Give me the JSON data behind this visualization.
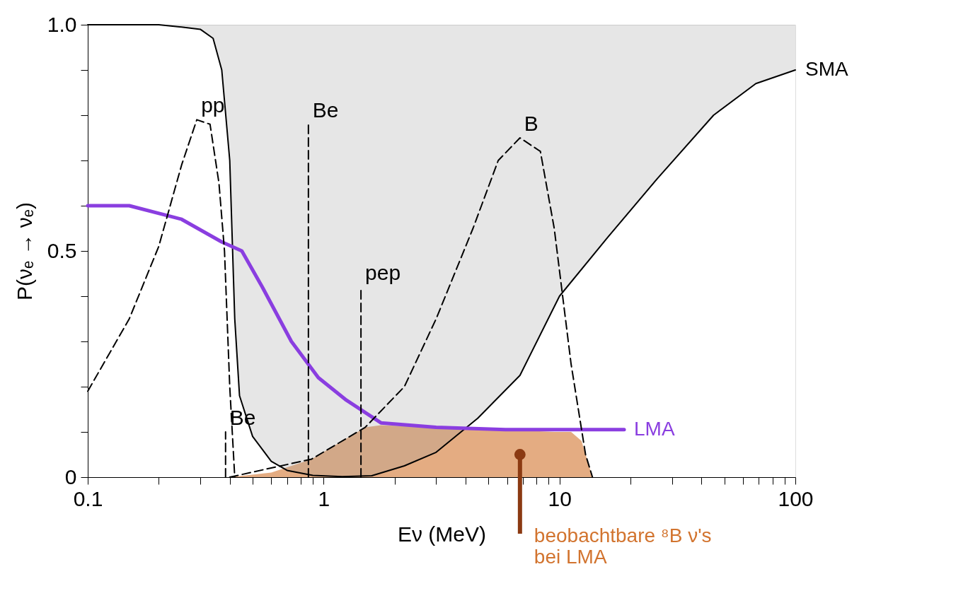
{
  "chart_data": {
    "type": "line",
    "xlabel": "Eν (MeV)",
    "ylabel": "P(νₑ → νₑ)",
    "log": "x",
    "grid": false,
    "xlim": [
      0.1,
      100
    ],
    "ylim": [
      0,
      1
    ],
    "xticks": [
      0.1,
      {
        "value": 0.2,
        "label": null
      },
      {
        "value": 0.3,
        "label": null
      },
      {
        "value": 0.4,
        "label": null
      },
      {
        "value": 0.5,
        "label": null
      },
      {
        "value": 0.6,
        "label": null
      },
      {
        "value": 0.7,
        "label": null
      },
      {
        "value": 0.8,
        "label": null
      },
      {
        "value": 0.9,
        "label": null
      },
      1,
      {
        "value": 2,
        "label": null
      },
      {
        "value": 3,
        "label": null
      },
      {
        "value": 4,
        "label": null
      },
      {
        "value": 5,
        "label": null
      },
      {
        "value": 6,
        "label": null
      },
      {
        "value": 7,
        "label": null
      },
      {
        "value": 8,
        "label": null
      },
      {
        "value": 9,
        "label": null
      },
      10,
      {
        "value": 20,
        "label": null
      },
      {
        "value": 30,
        "label": null
      },
      {
        "value": 40,
        "label": null
      },
      {
        "value": 50,
        "label": null
      },
      {
        "value": 60,
        "label": null
      },
      {
        "value": 70,
        "label": null
      },
      {
        "value": 80,
        "label": null
      },
      {
        "value": 90,
        "label": null
      },
      100
    ],
    "yticks": [
      0,
      {
        "value": 0.1,
        "label": null
      },
      {
        "value": 0.2,
        "label": null
      },
      {
        "value": 0.3,
        "label": null
      },
      {
        "value": 0.4,
        "label": null
      },
      0.5,
      {
        "value": 0.6,
        "label": null
      },
      {
        "value": 0.7,
        "label": null
      },
      {
        "value": 0.8,
        "label": null
      },
      {
        "value": 0.9,
        "label": null
      },
      {
        "value": 1,
        "label": "1.0"
      }
    ],
    "series": [
      {
        "type": "area",
        "color": "#d2742f",
        "x": [
          0.4,
          0.6,
          0.89,
          1.2,
          1.5,
          1.75,
          3,
          6,
          9.5,
          11.2,
          12.4,
          13.8
        ],
        "values": [
          0,
          0.01,
          0.04,
          0.08,
          0.11,
          0.115,
          0.11,
          0.105,
          0.1,
          0.1,
          0.08,
          0
        ]
      },
      {
        "name": "SMA",
        "color": "#000000",
        "line_style": "solid",
        "x": [
          0.1,
          0.2,
          0.25,
          0.3,
          0.34,
          0.37,
          0.4,
          0.42,
          0.44,
          0.5,
          0.6,
          0.7,
          0.9,
          1.2,
          1.6,
          2.2,
          3,
          4.5,
          6.8,
          10,
          16,
          26,
          45,
          68,
          100
        ],
        "values": [
          1,
          1,
          0.995,
          0.99,
          0.97,
          0.9,
          0.7,
          0.35,
          0.18,
          0.09,
          0.035,
          0.015,
          0.004,
          0.001,
          0.003,
          0.025,
          0.055,
          0.13,
          0.225,
          0.4,
          0.53,
          0.66,
          0.8,
          0.87,
          0.9
        ],
        "lower": [
          1,
          1,
          0.995,
          0.99,
          0.97,
          0.9,
          0.7,
          0.35,
          0.18,
          0.09,
          0.035,
          0.015,
          0.004,
          0.001,
          0.003,
          0.025,
          0.055,
          0.13,
          0.225,
          0.4,
          0.53,
          0.66,
          0.8,
          0.87,
          0.9
        ],
        "upper": [
          1,
          1,
          1,
          1,
          1,
          1,
          1,
          1,
          1,
          1,
          1,
          1,
          1,
          1,
          1,
          1,
          1,
          1,
          1,
          1,
          1,
          1,
          1,
          1,
          1
        ]
      },
      {
        "name": "LMA",
        "color": "#8a3ee0",
        "line_style": "solid",
        "x": [
          0.1,
          0.15,
          0.25,
          0.37,
          0.45,
          0.55,
          0.73,
          0.95,
          1.25,
          1.75,
          3,
          5.9,
          18.8
        ],
        "values": [
          0.6,
          0.6,
          0.57,
          0.52,
          0.5,
          0.42,
          0.3,
          0.22,
          0.17,
          0.12,
          0.11,
          0.105,
          0.105
        ]
      },
      {
        "name": "pp",
        "color": "#000000",
        "line_style": "dashed",
        "x": [
          0.1,
          0.15,
          0.2,
          0.25,
          0.29,
          0.33,
          0.36,
          0.38,
          0.4,
          0.42
        ],
        "values": [
          0.19,
          0.35,
          0.51,
          0.69,
          0.79,
          0.78,
          0.65,
          0.5,
          0.2,
          0
        ]
      },
      {
        "name": "Be",
        "color": "#000000",
        "line_style": "dashed",
        "x": [
          0.384,
          0.384
        ],
        "values": [
          0,
          0.1
        ]
      },
      {
        "name": "Be",
        "color": "#000000",
        "line_style": "dashed",
        "x": [
          0.862,
          0.862
        ],
        "values": [
          0,
          0.78
        ]
      },
      {
        "name": "pep",
        "color": "#000000",
        "line_style": "dashed",
        "x": [
          1.44,
          1.44
        ],
        "values": [
          0,
          0.42
        ]
      },
      {
        "name": "B",
        "color": "#000000",
        "line_style": "dashed",
        "x": [
          0.4,
          0.89,
          1.5,
          2.2,
          3,
          4.3,
          5.5,
          6.8,
          8.3,
          9.5,
          11.2,
          12.9,
          13.8
        ],
        "values": [
          0,
          0.04,
          0.11,
          0.2,
          0.35,
          0.55,
          0.7,
          0.75,
          0.72,
          0.55,
          0.25,
          0.05,
          0
        ]
      }
    ],
    "annotations": [
      {
        "text": "beobachtbare ⁸B ν's\nbei LMA",
        "x": 6.8,
        "y": 0.05
      }
    ]
  }
}
